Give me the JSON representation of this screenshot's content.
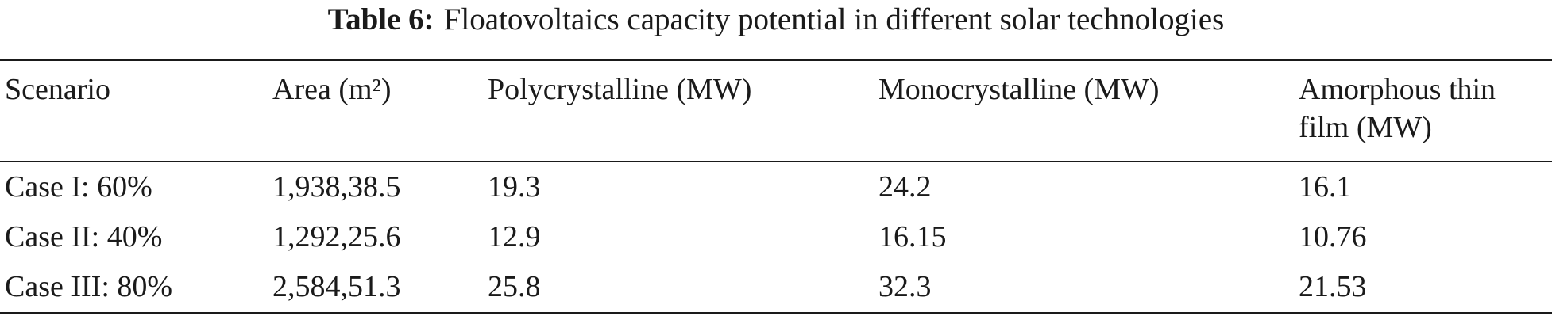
{
  "caption": {
    "label": "Table 6:",
    "text": "Floatovoltaics capacity potential in different solar technologies"
  },
  "table": {
    "columns": [
      "Scenario",
      "Area (m²)",
      "Polycrystalline (MW)",
      "Monocrystalline (MW)",
      "Amorphous thin film (MW)"
    ],
    "rows": [
      [
        "Case I: 60%",
        "1,938,38.5",
        "19.3",
        "24.2",
        "16.1"
      ],
      [
        "Case II: 40%",
        "1,292,25.6",
        "12.9",
        "16.15",
        "10.76"
      ],
      [
        "Case III: 80%",
        "2,584,51.3",
        "25.8",
        "32.3",
        "21.53"
      ]
    ]
  }
}
